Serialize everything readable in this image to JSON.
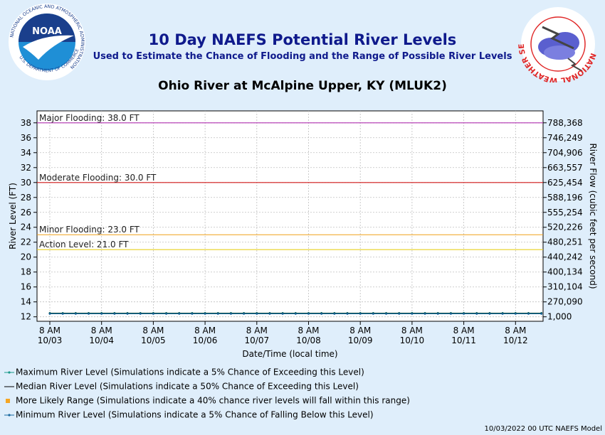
{
  "header": {
    "title": "10 Day NAEFS Potential River Levels",
    "subtitle": "Used to Estimate the Chance of Flooding and the Range of Possible River Levels",
    "location": "Ohio River at McAlpine Upper, KY (MLUK2)",
    "noaa_logo_text": "NOAA",
    "noaa_ring_text": "NATIONAL OCEANIC AND ATMOSPHERIC ADMINISTRATION",
    "noaa_ring_bottom": "U.S. DEPARTMENT OF COMMERCE",
    "nws_ring_text": "NATIONAL WEATHER SERVICE"
  },
  "chart_data": {
    "type": "line",
    "xlabel": "Date/Time (local time)",
    "ylabel": "River Level (FT)",
    "y2label": "River Flow (cubic feet per second)",
    "ylim": [
      11.4,
      39.6
    ],
    "y_ticks": [
      12,
      14,
      16,
      18,
      20,
      22,
      24,
      26,
      28,
      30,
      32,
      34,
      36,
      38
    ],
    "y2_ticks": [
      {
        "level": 12,
        "label": "1,000"
      },
      {
        "level": 14,
        "label": "270,090"
      },
      {
        "level": 16,
        "label": "310,104"
      },
      {
        "level": 18,
        "label": "400,134"
      },
      {
        "level": 20,
        "label": "440,242"
      },
      {
        "level": 22,
        "label": "480,251"
      },
      {
        "level": 24,
        "label": "520,226"
      },
      {
        "level": 26,
        "label": "555,254"
      },
      {
        "level": 28,
        "label": "588,196"
      },
      {
        "level": 30,
        "label": "625,454"
      },
      {
        "level": 32,
        "label": "663,557"
      },
      {
        "level": 34,
        "label": "704,906"
      },
      {
        "level": 36,
        "label": "746,249"
      },
      {
        "level": 38,
        "label": "788,368"
      }
    ],
    "x_domain_days": [
      0,
      9.9
    ],
    "x_ticks": [
      {
        "day": 0,
        "time": "8 AM",
        "date": "10/03"
      },
      {
        "day": 1,
        "time": "8 AM",
        "date": "10/04"
      },
      {
        "day": 2,
        "time": "8 AM",
        "date": "10/05"
      },
      {
        "day": 3,
        "time": "8 AM",
        "date": "10/06"
      },
      {
        "day": 4,
        "time": "8 AM",
        "date": "10/07"
      },
      {
        "day": 5,
        "time": "8 AM",
        "date": "10/08"
      },
      {
        "day": 6,
        "time": "8 AM",
        "date": "10/09"
      },
      {
        "day": 7,
        "time": "8 AM",
        "date": "10/10"
      },
      {
        "day": 8,
        "time": "8 AM",
        "date": "10/11"
      },
      {
        "day": 9,
        "time": "8 AM",
        "date": "10/12"
      }
    ],
    "thresholds": [
      {
        "label": "Major Flooding: 38.0 FT",
        "level": 38.0,
        "color": "#b030b0"
      },
      {
        "label": "Moderate Flooding: 30.0 FT",
        "level": 30.0,
        "color": "#d01818"
      },
      {
        "label": "Minor Flooding: 23.0 FT",
        "level": 23.0,
        "color": "#f0a018"
      },
      {
        "label": "Action Level: 21.0 FT",
        "level": 21.0,
        "color": "#e8d020"
      }
    ],
    "series": [
      {
        "name": "Maximum River Level (Simulations indicate a 5% Chance of Exceeding this Level)",
        "color": "#1a9a8a",
        "start_day": -0.25,
        "step_days": 0.25,
        "values": [
          12.5,
          12.5,
          12.5,
          12.5,
          12.5,
          12.5,
          12.5,
          12.5,
          12.5,
          12.5,
          12.5,
          12.5,
          12.5,
          12.5,
          12.5,
          12.5,
          12.5,
          12.5,
          12.5,
          12.5,
          12.5,
          12.5,
          12.5,
          12.5,
          12.5,
          12.5,
          12.5,
          12.5,
          12.5,
          12.5,
          12.5,
          12.5,
          12.5,
          12.5,
          12.5,
          12.5,
          12.5,
          12.5,
          12.5,
          12.5,
          12.5,
          12.5
        ]
      },
      {
        "name": "Median River Level (Simulations indicate a 50% Chance of Exceeding this Level)",
        "color": "#000000",
        "start_day": -0.25,
        "step_days": 0.25,
        "values": [
          12.45,
          12.45,
          12.45,
          12.45,
          12.45,
          12.45,
          12.45,
          12.45,
          12.45,
          12.45,
          12.45,
          12.45,
          12.45,
          12.45,
          12.45,
          12.45,
          12.45,
          12.45,
          12.45,
          12.45,
          12.45,
          12.45,
          12.45,
          12.45,
          12.45,
          12.45,
          12.45,
          12.45,
          12.45,
          12.45,
          12.45,
          12.45,
          12.45,
          12.45,
          12.45,
          12.45,
          12.45,
          12.45,
          12.45,
          12.45,
          12.45,
          12.45
        ]
      },
      {
        "name": "Minimum River Level (Simulations indicate a 5% Chance of Falling Below this Level)",
        "color": "#1a6aa0",
        "start_day": -0.25,
        "step_days": 0.25,
        "values": [
          12.4,
          12.4,
          12.4,
          12.4,
          12.4,
          12.4,
          12.4,
          12.4,
          12.4,
          12.4,
          12.4,
          12.4,
          12.4,
          12.4,
          12.4,
          12.4,
          12.4,
          12.4,
          12.4,
          12.4,
          12.4,
          12.4,
          12.4,
          12.4,
          12.4,
          12.4,
          12.4,
          12.4,
          12.4,
          12.4,
          12.4,
          12.4,
          12.4,
          12.4,
          12.4,
          12.4,
          12.4,
          12.4,
          12.4,
          12.4,
          12.4,
          12.4
        ]
      }
    ],
    "grid": true
  },
  "legend": [
    {
      "label": "Maximum River Level (Simulations indicate a 5% Chance of Exceeding this Level)",
      "symbol": "line-dot",
      "color": "#1a9a8a"
    },
    {
      "label": "Median River Level (Simulations indicate a 50% Chance of Exceeding this Level)",
      "symbol": "line",
      "color": "#000000"
    },
    {
      "label": "More Likely Range (Simulations indicate a 40% chance river levels will fall within this range)",
      "symbol": "square",
      "color": "#f5a623"
    },
    {
      "label": "Minimum River Level (Simulations indicate a 5% Chance of Falling Below this Level)",
      "symbol": "line-dot",
      "color": "#1a6aa0"
    }
  ],
  "footer": "10/03/2022 00 UTC NAEFS Model"
}
